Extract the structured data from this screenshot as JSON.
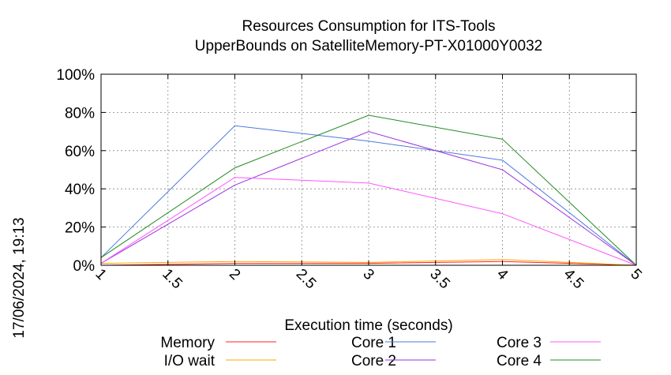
{
  "chart_data": {
    "type": "line",
    "title_line1": "Resources Consumption for ITS-Tools",
    "title_line2": "UpperBounds on SatelliteMemory-PT-X01000Y0032",
    "xlabel": "Execution time (seconds)",
    "ylabel": "",
    "side_label": "17/06/2024, 19:13",
    "xlim": [
      1,
      5
    ],
    "ylim": [
      0,
      100
    ],
    "x_ticks": [
      "1",
      "1.5",
      "2",
      "2.5",
      "3",
      "3.5",
      "4",
      "4.5",
      "5"
    ],
    "y_ticks": [
      "0%",
      "20%",
      "40%",
      "60%",
      "80%",
      "100%"
    ],
    "grid": true,
    "legend_position": "bottom",
    "x": [
      1,
      2,
      3,
      4,
      5
    ],
    "series": [
      {
        "name": "Memory",
        "color": "#ff2222",
        "values": [
          0,
          1,
          1,
          2,
          0
        ]
      },
      {
        "name": "I/O wait",
        "color": "#ffa500",
        "values": [
          1,
          2,
          1.5,
          3,
          0
        ]
      },
      {
        "name": "Core 1",
        "color": "#4a78e0",
        "values": [
          4,
          73,
          65,
          55,
          0
        ]
      },
      {
        "name": "Core 2",
        "color": "#9b30e0",
        "values": [
          1,
          42,
          70,
          50,
          0
        ]
      },
      {
        "name": "Core 3",
        "color": "#ff55ff",
        "values": [
          1,
          46,
          43,
          27,
          0
        ]
      },
      {
        "name": "Core 4",
        "color": "#228b22",
        "values": [
          4,
          51,
          78.5,
          66,
          0
        ]
      }
    ]
  }
}
